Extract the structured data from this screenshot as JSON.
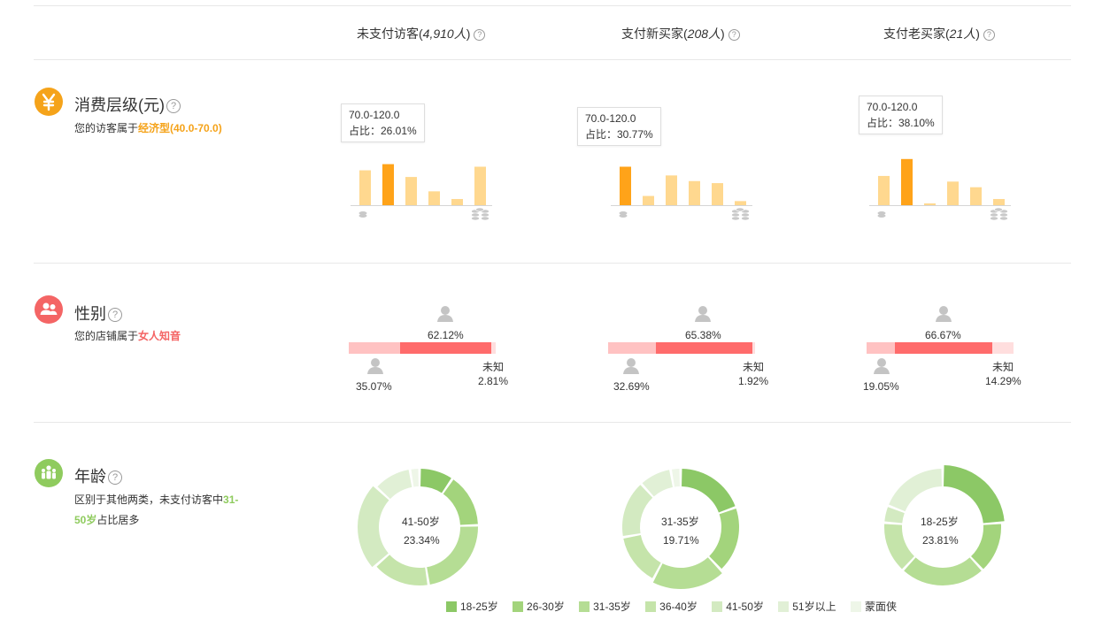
{
  "columns": [
    {
      "label": "未支付访客(",
      "count": "4,910人",
      "close": ")"
    },
    {
      "label": "支付新买家(",
      "count": "208人",
      "close": ")"
    },
    {
      "label": "支付老买家(",
      "count": "21人",
      "close": ")"
    }
  ],
  "help_glyph": "?",
  "colors": {
    "consumption_accent": "#f5a31a",
    "consumption_bar_highlight": "#ffa319",
    "consumption_bar": "#ffd88f",
    "gender_accent": "#f46565",
    "gender_female": "#ff6b6b",
    "gender_male": "#ffc2c2",
    "gender_unknown": "#ffdede",
    "age_accent": "#8fcb5e"
  },
  "sections": {
    "consumption": {
      "title": "消费层级(元)",
      "desc_prefix": "您的访客属于",
      "desc_highlight": "经济型(40.0-70.0)",
      "icon": "yen-icon",
      "columns": [
        {
          "tooltip_range": "70.0-120.0",
          "tooltip_share": "占比：26.01%",
          "bars": [
            0.68,
            0.8,
            0.55,
            0.27,
            0.12,
            0.75
          ],
          "highlight": 1
        },
        {
          "tooltip_range": "70.0-120.0",
          "tooltip_share": "占比：30.77%",
          "bars": [
            0.75,
            0.18,
            0.58,
            0.47,
            0.43,
            0.08
          ],
          "highlight": 0
        },
        {
          "tooltip_range": "70.0-120.0",
          "tooltip_share": "占比：38.10%",
          "bars": [
            0.57,
            0.9,
            0.03,
            0.46,
            0.35,
            0.12
          ],
          "highlight": 1
        }
      ]
    },
    "gender": {
      "title": "性别",
      "desc_prefix": "您的店铺属于",
      "desc_highlight": "女人知音",
      "icon": "people-icon",
      "unknown_label": "未知",
      "columns": [
        {
          "female": "62.12%",
          "male": "35.07%",
          "unknown": "2.81%",
          "female_v": 62.12,
          "male_v": 35.07,
          "unknown_v": 2.81
        },
        {
          "female": "65.38%",
          "male": "32.69%",
          "unknown": "1.92%",
          "female_v": 65.38,
          "male_v": 32.69,
          "unknown_v": 1.92
        },
        {
          "female": "66.67%",
          "male": "19.05%",
          "unknown": "14.29%",
          "female_v": 66.67,
          "male_v": 19.05,
          "unknown_v": 14.29
        }
      ]
    },
    "age": {
      "title": "年龄",
      "desc_line1_prefix": "区别于其他两类，未支付访客中",
      "desc_line1_highlight": "31-",
      "desc_line2_highlight": "50岁",
      "desc_line2_suffix": "占比居多",
      "icon": "family-icon",
      "columns": [
        {
          "center_label": "41-50岁",
          "center_value": "23.34%",
          "values": [
            9.5,
            15.0,
            23.0,
            16.0,
            23.34,
            10.5,
            2.66
          ],
          "active": 4
        },
        {
          "center_label": "31-35岁",
          "center_value": "19.71%",
          "values": [
            19.5,
            18.5,
            19.71,
            14.5,
            16.0,
            9.0,
            2.79
          ],
          "active": 2
        },
        {
          "center_label": "18-25岁",
          "center_value": "23.81%",
          "values": [
            23.81,
            14.29,
            23.81,
            14.29,
            4.76,
            19.04,
            0.0
          ],
          "active": 0
        }
      ]
    }
  },
  "legend": [
    {
      "label": "18-25岁",
      "color": "#8cc866"
    },
    {
      "label": "26-30岁",
      "color": "#a3d47c"
    },
    {
      "label": "31-35岁",
      "color": "#b5dd94"
    },
    {
      "label": "36-40岁",
      "color": "#c5e4aa"
    },
    {
      "label": "41-50岁",
      "color": "#d3eac1"
    },
    {
      "label": "51岁以上",
      "color": "#e1f0d6"
    },
    {
      "label": "蒙面侠",
      "color": "#eef6e8"
    }
  ]
}
